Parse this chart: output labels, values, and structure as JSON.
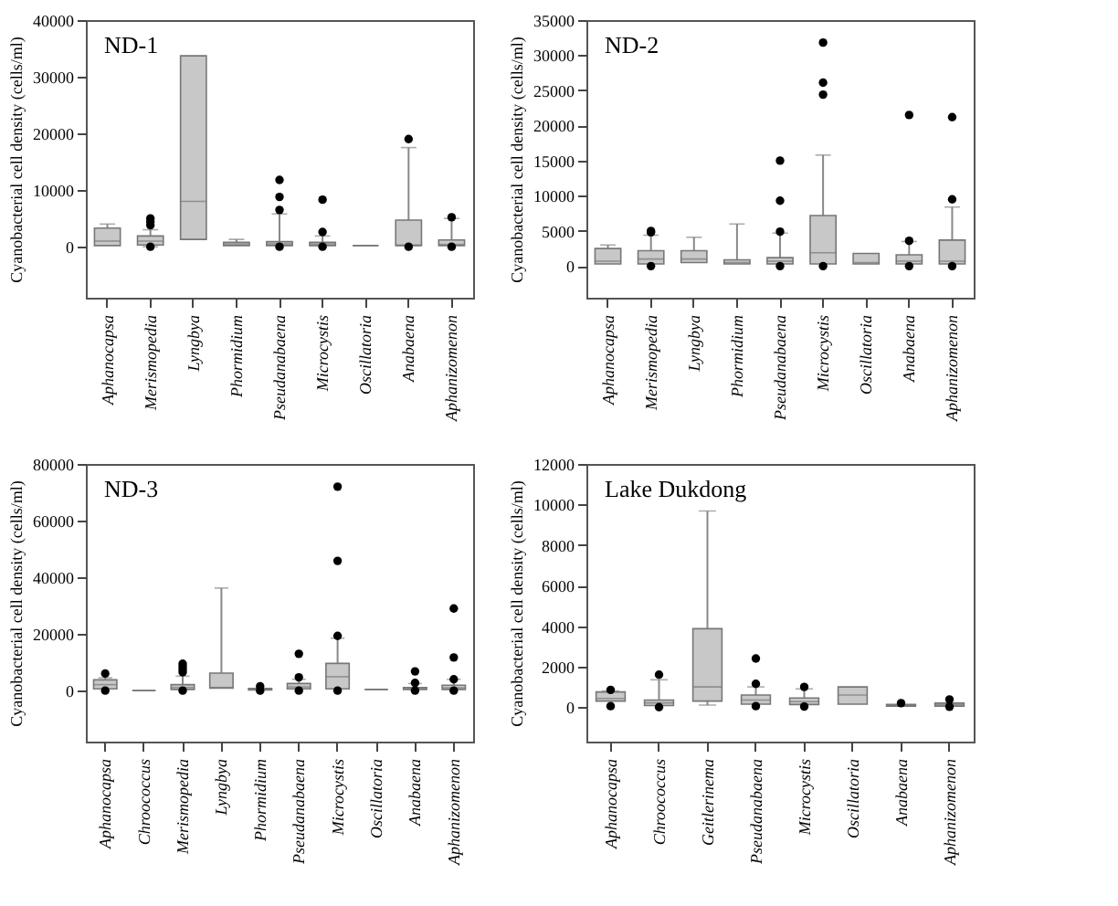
{
  "chart_data": [
    {
      "type": "box",
      "title": "ND-1",
      "ylabel": "Cyanobacterial cell density (cells/ml)",
      "categories": [
        "Aphanocapsa",
        "Merismopedia",
        "Lyngbya",
        "Phormidium",
        "Pseudanabaena",
        "Microcystis",
        "Oscillatoria",
        "Anabaena",
        "Aphanizomenon"
      ],
      "ylim": [
        -9000,
        40000
      ],
      "yticks": [
        0,
        10000,
        20000,
        30000,
        40000
      ],
      "boxes": [
        {
          "low": 200,
          "q1": 200,
          "median": 1000,
          "q3": 3300,
          "high": 4000
        },
        {
          "low": 0,
          "q1": 300,
          "median": 1000,
          "q3": 1900,
          "high": 3000,
          "outliers": [
            5000,
            4400,
            3800,
            0
          ]
        },
        {
          "low": 1300,
          "q1": 1300,
          "median": 8000,
          "q3": 33700,
          "high": 33700
        },
        {
          "low": 200,
          "q1": 200,
          "median": 500,
          "q3": 800,
          "high": 1300
        },
        {
          "low": 200,
          "q1": 200,
          "median": 500,
          "q3": 900,
          "high": 5800,
          "outliers": [
            11800,
            8800,
            6500,
            0
          ]
        },
        {
          "low": 200,
          "q1": 200,
          "median": 500,
          "q3": 800,
          "high": 1900,
          "outliers": [
            8300,
            2600,
            0
          ]
        },
        {
          "low": 200,
          "q1": 200,
          "median": 200,
          "q3": 200,
          "high": 200
        },
        {
          "low": 200,
          "q1": 200,
          "median": 300,
          "q3": 4700,
          "high": 17500,
          "outliers": [
            19000,
            0
          ]
        },
        {
          "low": 200,
          "q1": 200,
          "median": 400,
          "q3": 1200,
          "high": 5000,
          "outliers": [
            5200,
            0
          ]
        }
      ]
    },
    {
      "type": "box",
      "title": "ND-2",
      "ylabel": "Cyanobacterial cell density (cells/ml)",
      "categories": [
        "Aphanocapsa",
        "Merismopedia",
        "Lyngbya",
        "Phormidium",
        "Pseudanabaena",
        "Microcystis",
        "Oscillatoria",
        "Anabaena",
        "Aphanizomenon"
      ],
      "ylim": [
        -4500,
        35000
      ],
      "yticks": [
        0,
        5000,
        10000,
        15000,
        20000,
        25000,
        30000,
        35000
      ],
      "boxes": [
        {
          "low": 300,
          "q1": 300,
          "median": 700,
          "q3": 2500,
          "high": 3000
        },
        {
          "low": 300,
          "q1": 300,
          "median": 1000,
          "q3": 2200,
          "high": 4400,
          "outliers": [
            5000,
            4800,
            0
          ]
        },
        {
          "low": 500,
          "q1": 500,
          "median": 1000,
          "q3": 2200,
          "high": 4100
        },
        {
          "low": 300,
          "q1": 300,
          "median": 500,
          "q3": 900,
          "high": 6000
        },
        {
          "low": 300,
          "q1": 300,
          "median": 700,
          "q3": 1200,
          "high": 4700,
          "outliers": [
            15000,
            9300,
            4900,
            0
          ]
        },
        {
          "low": 300,
          "q1": 300,
          "median": 1900,
          "q3": 7200,
          "high": 15800,
          "outliers": [
            31800,
            26100,
            24400,
            0
          ]
        },
        {
          "low": 300,
          "q1": 300,
          "median": 500,
          "q3": 1800,
          "high": 1800
        },
        {
          "low": 300,
          "q1": 300,
          "median": 700,
          "q3": 1600,
          "high": 3500,
          "outliers": [
            21500,
            3600,
            0
          ]
        },
        {
          "low": 300,
          "q1": 300,
          "median": 700,
          "q3": 3700,
          "high": 8400,
          "outliers": [
            21200,
            9500,
            0
          ]
        }
      ]
    },
    {
      "type": "box",
      "title": "ND-3",
      "ylabel": "Cyanobacterial cell density (cells/ml)",
      "categories": [
        "Aphanocapsa",
        "Chroococcus",
        "Merismopedia",
        "Lyngbya",
        "Phormidium",
        "Pseudanabaena",
        "Microcystis",
        "Oscillatoria",
        "Anabaena",
        "Aphanizomenon"
      ],
      "ylim": [
        -18000,
        80000
      ],
      "yticks": [
        0,
        20000,
        40000,
        60000,
        80000
      ],
      "boxes": [
        {
          "low": 600,
          "q1": 600,
          "median": 2100,
          "q3": 3800,
          "high": 4500,
          "outliers": [
            6000,
            0
          ]
        },
        {
          "low": 0,
          "q1": 0,
          "median": 0,
          "q3": 0,
          "high": 0
        },
        {
          "low": 400,
          "q1": 400,
          "median": 1100,
          "q3": 2100,
          "high": 5100,
          "outliers": [
            9500,
            8500,
            7500,
            6500,
            0
          ]
        },
        {
          "low": 900,
          "q1": 900,
          "median": 1100,
          "q3": 6200,
          "high": 36200
        },
        {
          "low": 200,
          "q1": 200,
          "median": 500,
          "q3": 800,
          "high": 800,
          "outliers": [
            1500,
            0
          ]
        },
        {
          "low": 600,
          "q1": 600,
          "median": 1300,
          "q3": 2500,
          "high": 4000,
          "outliers": [
            13000,
            4700,
            0
          ]
        },
        {
          "low": 600,
          "q1": 600,
          "median": 4900,
          "q3": 9600,
          "high": 18500,
          "outliers": [
            72000,
            45800,
            19300,
            0
          ]
        },
        {
          "low": 400,
          "q1": 400,
          "median": 400,
          "q3": 400,
          "high": 400
        },
        {
          "low": 400,
          "q1": 400,
          "median": 700,
          "q3": 1100,
          "high": 2500,
          "outliers": [
            6800,
            2700,
            0
          ]
        },
        {
          "low": 400,
          "q1": 400,
          "median": 1000,
          "q3": 1900,
          "high": 4000,
          "outliers": [
            29000,
            11700,
            4000,
            0
          ]
        }
      ]
    },
    {
      "type": "box",
      "title": "Lake Dukdong",
      "ylabel": "Cyanobacterial cell density (cells/ml)",
      "categories": [
        "Aphanocapsa",
        "Chroococcus",
        "Geitlerinema",
        "Pseudanabaena",
        "Microcystis",
        "Oscillatoria",
        "Anabaena",
        "Aphanizomenon"
      ],
      "ylim": [
        -1700,
        12000
      ],
      "yticks": [
        0,
        2000,
        4000,
        6000,
        8000,
        10000,
        12000
      ],
      "boxes": [
        {
          "low": 300,
          "q1": 300,
          "median": 430,
          "q3": 750,
          "high": 800,
          "outliers": [
            850,
            50
          ]
        },
        {
          "low": 80,
          "q1": 80,
          "median": 210,
          "q3": 350,
          "high": 1350,
          "outliers": [
            1600,
            0
          ]
        },
        {
          "low": 100,
          "q1": 300,
          "median": 1000,
          "q3": 3870,
          "high": 9680
        },
        {
          "low": 150,
          "q1": 150,
          "median": 350,
          "q3": 600,
          "high": 1000,
          "outliers": [
            2400,
            1150,
            50
          ]
        },
        {
          "low": 130,
          "q1": 130,
          "median": 270,
          "q3": 450,
          "high": 900,
          "outliers": [
            1000,
            30
          ]
        },
        {
          "low": 150,
          "q1": 150,
          "median": 600,
          "q3": 1000,
          "high": 1000
        },
        {
          "low": 50,
          "q1": 50,
          "median": 90,
          "q3": 130,
          "high": 130,
          "outliers": [
            200
          ]
        },
        {
          "low": 50,
          "q1": 50,
          "median": 120,
          "q3": 200,
          "high": 200,
          "outliers": [
            380,
            20
          ]
        }
      ]
    }
  ]
}
